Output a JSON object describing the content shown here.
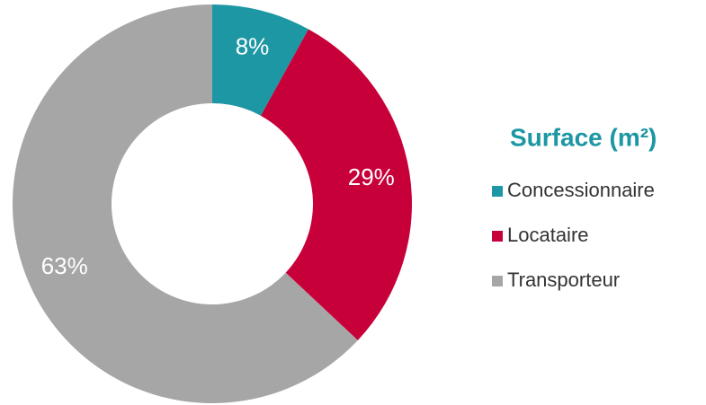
{
  "chart_data": {
    "type": "pie",
    "legend_title": "Surface (m²)",
    "categories": [
      "Concessionnaire",
      "Locataire",
      "Transporteur"
    ],
    "values": [
      8,
      29,
      63
    ],
    "value_labels": [
      "8%",
      "29%",
      "63%"
    ],
    "colors": [
      "#1c97a3",
      "#c8003a",
      "#a6a6a6"
    ],
    "donut": true,
    "legend": "right"
  }
}
